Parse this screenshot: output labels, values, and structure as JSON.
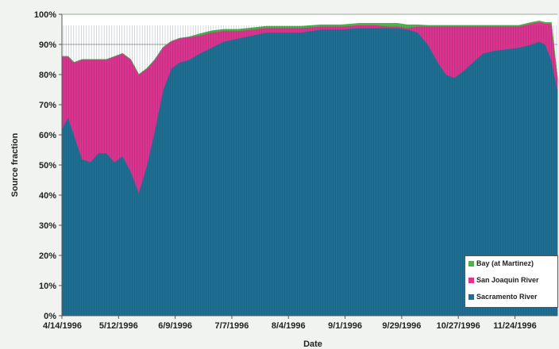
{
  "chart_data": {
    "type": "area",
    "stacked": true,
    "xlabel": "Date",
    "ylabel": "Source fraction",
    "x_tick_labels": [
      "4/14/1996",
      "5/12/1996",
      "6/9/1996",
      "7/7/1996",
      "8/4/1996",
      "9/1/1996",
      "9/29/1996",
      "10/27/1996",
      "11/24/1996"
    ],
    "x_range": [
      "4/14/1996",
      "12/15/1996"
    ],
    "ylim": [
      0,
      100
    ],
    "y_tick_labels": [
      "0%",
      "10%",
      "20%",
      "30%",
      "40%",
      "50%",
      "60%",
      "70%",
      "80%",
      "90%",
      "100%"
    ],
    "grid": "horizontal",
    "legend_position": "bottom-right",
    "x": [
      "4/14/1996",
      "4/17/1996",
      "4/20/1996",
      "4/24/1996",
      "4/28/1996",
      "5/2/1996",
      "5/6/1996",
      "5/10/1996",
      "5/14/1996",
      "5/18/1996",
      "5/22/1996",
      "5/26/1996",
      "5/30/1996",
      "6/3/1996",
      "6/7/1996",
      "6/11/1996",
      "6/16/1996",
      "6/21/1996",
      "6/27/1996",
      "7/3/1996",
      "7/10/1996",
      "7/17/1996",
      "7/24/1996",
      "8/1/1996",
      "8/10/1996",
      "8/20/1996",
      "8/30/1996",
      "9/8/1996",
      "9/16/1996",
      "9/22/1996",
      "9/27/1996",
      "10/2/1996",
      "10/7/1996",
      "10/12/1996",
      "10/17/1996",
      "10/21/1996",
      "10/25/1996",
      "10/29/1996",
      "11/3/1996",
      "11/8/1996",
      "11/14/1996",
      "11/20/1996",
      "11/26/1996",
      "12/2/1996",
      "12/6/1996",
      "12/9/1996",
      "12/12/1996",
      "12/15/1996"
    ],
    "series": [
      {
        "name": "Sacramento River",
        "color": "#1f6f93",
        "values": [
          62,
          66,
          60,
          52,
          51,
          54,
          54,
          51,
          53,
          48,
          41,
          50,
          62,
          75,
          82,
          84,
          85,
          87,
          89,
          91,
          92,
          93,
          94,
          94,
          94,
          95,
          95,
          95.5,
          95.5,
          95.5,
          95.5,
          95,
          94,
          90,
          84,
          80,
          79,
          81,
          84,
          87,
          88,
          88.5,
          89,
          90,
          91,
          90,
          85,
          75
        ]
      },
      {
        "name": "San Joaquin River",
        "color": "#e0338f",
        "values": [
          24,
          20,
          24,
          33,
          34,
          31,
          31,
          35,
          34,
          37,
          39,
          32,
          23,
          14,
          9,
          8,
          7.5,
          6,
          5,
          3.5,
          2.5,
          2,
          1.5,
          1.5,
          1.5,
          1,
          1,
          1,
          1,
          0.5,
          0.5,
          0.5,
          2,
          6,
          12,
          16,
          17,
          15,
          12,
          9,
          8,
          7.5,
          7,
          7,
          6.5,
          7,
          12,
          4
        ]
      },
      {
        "name": "Bay (at Martinez)",
        "color": "#4fb24a",
        "values": [
          0,
          0,
          0,
          0,
          0,
          0,
          0,
          0,
          0,
          0,
          0,
          0,
          0,
          0,
          0,
          0,
          0,
          0.5,
          0.5,
          0.5,
          0.5,
          0.5,
          0.5,
          0.5,
          0.5,
          0.5,
          0.5,
          0.5,
          0.5,
          1,
          1,
          1,
          0.5,
          0.3,
          0.3,
          0.3,
          0.3,
          0.3,
          0.3,
          0.3,
          0.3,
          0.3,
          0.3,
          0.3,
          0.3,
          0.3,
          0.3,
          0
        ]
      }
    ],
    "legend_order": [
      "Bay (at Martinez)",
      "San Joaquin River",
      "Sacramento River"
    ]
  },
  "colors": {
    "background": "#f1f3f0",
    "plot_background": "#ffffff",
    "gridline": "#9aa89a",
    "axis": "#555555",
    "text": "#222222"
  }
}
